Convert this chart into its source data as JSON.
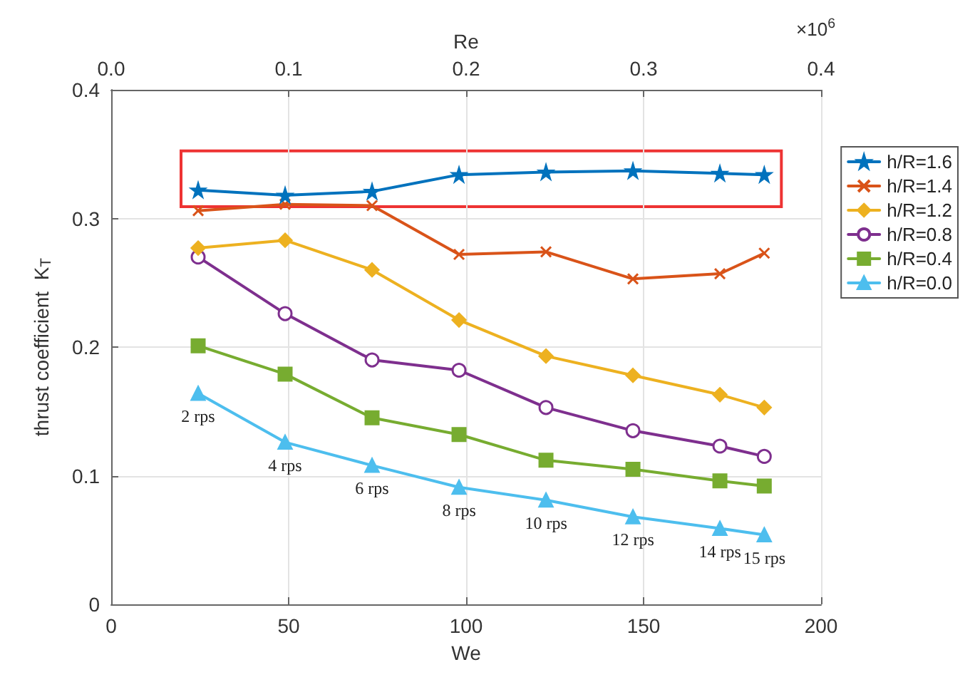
{
  "chart_data": {
    "type": "line",
    "xlabel": "We",
    "ylabel": "thrust coefficient  K$_{T}$",
    "x2label": "Re",
    "x": [
      24.5,
      49,
      73.5,
      98,
      122.5,
      147,
      171.5,
      184
    ],
    "series": [
      {
        "name": "h/R=1.6",
        "color": "#0072bd",
        "marker": "star",
        "values": [
          0.322,
          0.318,
          0.321,
          0.334,
          0.336,
          0.337,
          0.335,
          0.334
        ]
      },
      {
        "name": "h/R=1.4",
        "color": "#d95319",
        "marker": "cross",
        "values": [
          0.306,
          0.311,
          0.31,
          0.272,
          0.274,
          0.253,
          0.257,
          0.273
        ]
      },
      {
        "name": "h/R=1.2",
        "color": "#edb120",
        "marker": "diamond",
        "values": [
          0.277,
          0.283,
          0.26,
          0.221,
          0.193,
          0.178,
          0.163,
          0.153
        ]
      },
      {
        "name": "h/R=0.8",
        "color": "#7e2f8e",
        "marker": "circle",
        "values": [
          0.27,
          0.226,
          0.19,
          0.182,
          0.153,
          0.135,
          0.123,
          0.115
        ]
      },
      {
        "name": "h/R=0.4",
        "color": "#77ac30",
        "marker": "square",
        "values": [
          0.201,
          0.179,
          0.145,
          0.132,
          0.112,
          0.105,
          0.096,
          0.092
        ]
      },
      {
        "name": "h/R=0.0",
        "color": "#4dbeee",
        "marker": "triangle",
        "values": [
          0.164,
          0.126,
          0.108,
          0.091,
          0.081,
          0.068,
          0.059,
          0.054
        ]
      }
    ],
    "xlim": [
      0,
      200
    ],
    "xticks": [
      0,
      50,
      100,
      150,
      200
    ],
    "ylim": [
      0,
      0.4
    ],
    "yticks": [
      0,
      0.1,
      0.2,
      0.3,
      0.4
    ],
    "x2lim": [
      0,
      0.4
    ],
    "x2ticks": [
      {
        "value": 0,
        "label": "0.0"
      },
      {
        "value": 0.1,
        "label": "0.1"
      },
      {
        "value": 0.2,
        "label": "0.2"
      },
      {
        "value": 0.3,
        "label": "0.3"
      },
      {
        "value": 0.4,
        "label": "0.4"
      }
    ],
    "grid": true,
    "legend": "right",
    "line_style": "solid",
    "annotations": [
      "×10$^{6}$",
      {
        "text": "2 rps",
        "x": 24.5,
        "y": 0.164
      },
      {
        "text": "4 rps",
        "x": 49,
        "y": 0.126
      },
      {
        "text": "6 rps",
        "x": 73.5,
        "y": 0.108
      },
      {
        "text": "8 rps",
        "x": 98,
        "y": 0.091
      },
      {
        "text": "10 rps",
        "x": 122.5,
        "y": 0.081
      },
      {
        "text": "12 rps",
        "x": 147,
        "y": 0.068
      },
      {
        "text": "14 rps",
        "x": 171.5,
        "y": 0.059
      },
      {
        "text": "15 rps",
        "x": 184,
        "y": 0.054
      }
    ]
  }
}
